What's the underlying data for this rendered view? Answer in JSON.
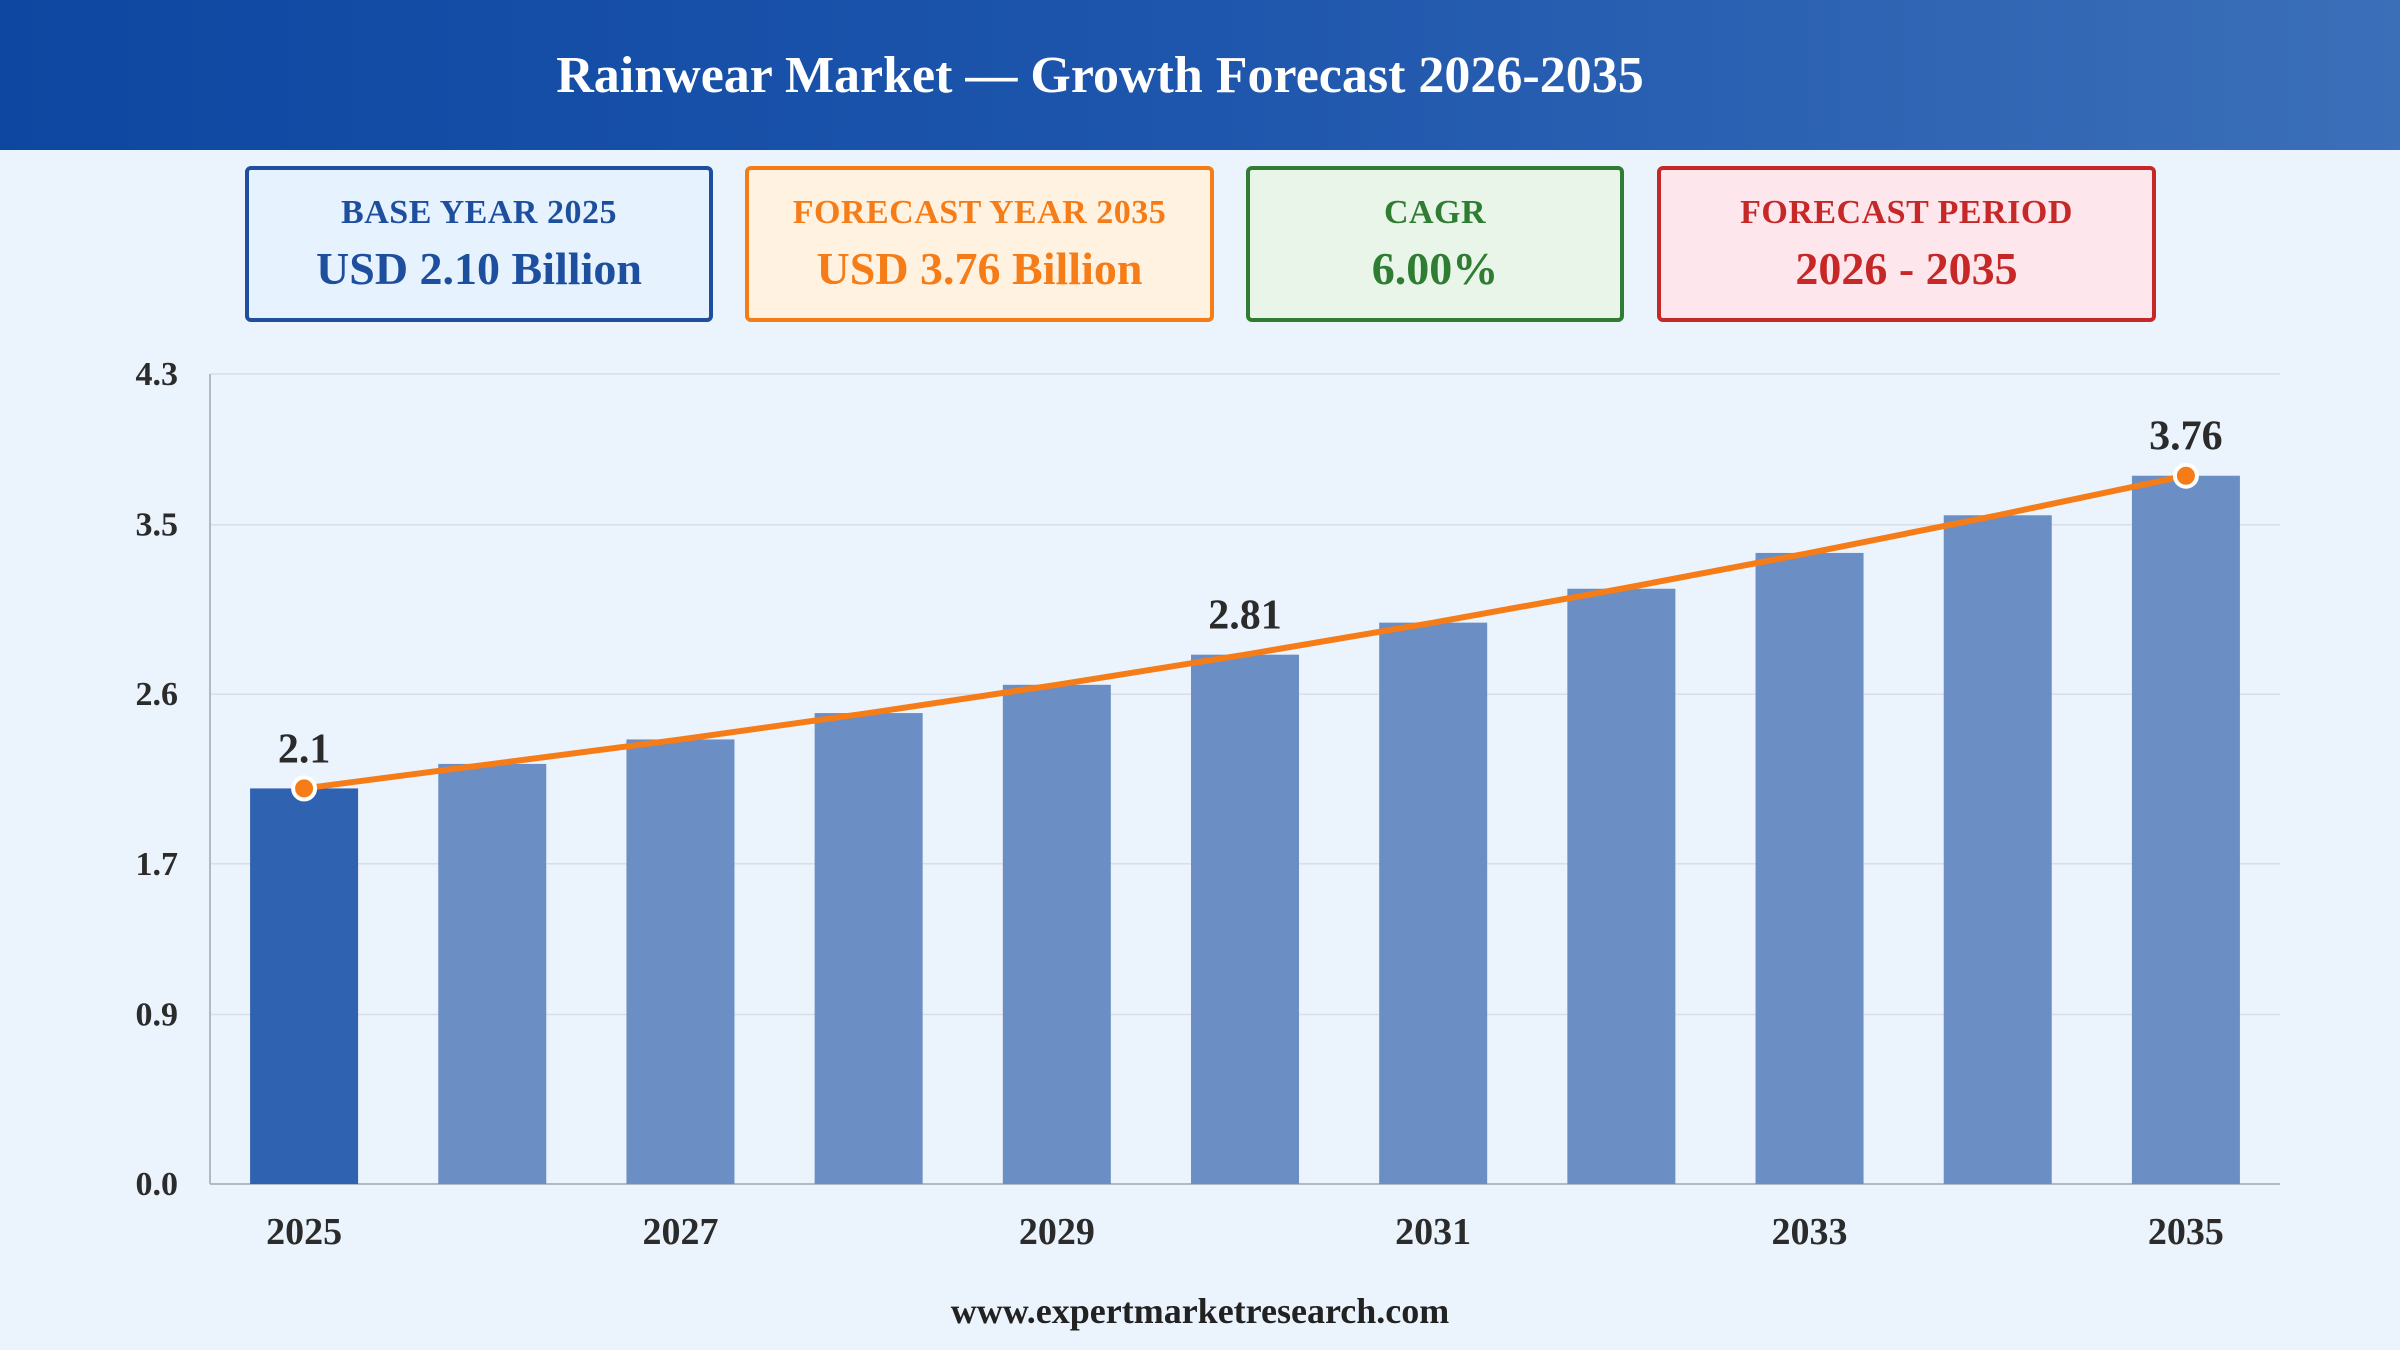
{
  "header": {
    "title": "Rainwear Market — Growth Forecast 2026-2035"
  },
  "cards": {
    "base": {
      "label": "BASE YEAR 2025",
      "value": "USD 2.10 Billion",
      "color": "#1e4f9e"
    },
    "forecast": {
      "label": "FORECAST YEAR 2035",
      "value": "USD 3.76 Billion",
      "color": "#f57c17"
    },
    "cagr": {
      "label": "CAGR",
      "value": "6.00%",
      "color": "#2e7d32"
    },
    "period": {
      "label": "FORECAST PERIOD",
      "value": "2026 - 2035",
      "color": "#c62828"
    }
  },
  "chart_data": {
    "type": "bar",
    "categories": [
      "2025",
      "2026",
      "2027",
      "2028",
      "2029",
      "2030",
      "2031",
      "2032",
      "2033",
      "2034",
      "2035"
    ],
    "values": [
      2.1,
      2.23,
      2.36,
      2.5,
      2.65,
      2.81,
      2.98,
      3.16,
      3.35,
      3.55,
      3.76
    ],
    "x_tick_labels": [
      "2025",
      "",
      "2027",
      "",
      "2029",
      "",
      "2031",
      "",
      "2033",
      "",
      "2035"
    ],
    "y_ticks": [
      "0.0",
      "0.9",
      "1.7",
      "2.6",
      "3.5",
      "4.3"
    ],
    "ylim": [
      0,
      4.3
    ],
    "data_labels": [
      {
        "category": "2025",
        "text": "2.1"
      },
      {
        "category": "2030",
        "text": "2.81"
      },
      {
        "category": "2035",
        "text": "3.76"
      }
    ],
    "overlay": {
      "type": "line",
      "values": [
        2.1,
        2.23,
        2.36,
        2.5,
        2.65,
        2.81,
        2.98,
        3.16,
        3.35,
        3.55,
        3.76
      ]
    },
    "grid": true,
    "colors": {
      "base_bar": "#2f62b0",
      "bar": "#6b8fc4",
      "line": "#f57c17",
      "grid": "#d8dee8",
      "axis": "#b3b9c2"
    }
  },
  "footer": {
    "url": "www.expertmarketresearch.com"
  }
}
